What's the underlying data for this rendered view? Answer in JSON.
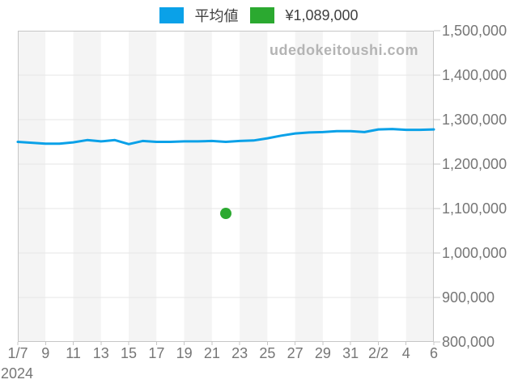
{
  "legend": {
    "items": [
      {
        "label": "平均値",
        "color": "#0aa1e8"
      },
      {
        "label": "¥1,089,000",
        "color": "#2ba930"
      }
    ]
  },
  "watermark": "udedokeitoushi.com",
  "axes": {
    "year_label": "2024"
  },
  "colors": {
    "line_blue": "#0aa1e8",
    "point_green": "#2ba930",
    "plot_band": "#f4f4f4",
    "plot_background": "#ffffff",
    "gridline": "#e6e6e6",
    "plot_border": "#c6c6c6",
    "tick_mark": "#c6c6c6",
    "tick_text": "#767676",
    "legend_text": "#3f3f3f",
    "watermark_text": "#b4b4b4"
  },
  "chart_data": {
    "type": "line",
    "title": "",
    "xlabel": "",
    "ylabel": "",
    "x_tick_labels": [
      "1/7",
      "9",
      "11",
      "13",
      "15",
      "17",
      "19",
      "21",
      "23",
      "25",
      "27",
      "29",
      "31",
      "2/2",
      "4",
      "6"
    ],
    "x_year_label": "2024",
    "y_tick_labels": [
      "1,500,000",
      "1,400,000",
      "1,300,000",
      "1,200,000",
      "1,100,000",
      "1,000,000",
      "900,000",
      "800,000"
    ],
    "ylim": [
      800000,
      1500000
    ],
    "y_step": 100000,
    "grid": true,
    "alternating_bands": true,
    "legend_position": "top-center",
    "series": [
      {
        "name": "平均値",
        "type": "line",
        "color": "#0aa1e8",
        "x_start_day": "1/7",
        "x_end_day": "2/6",
        "values": [
          1250000,
          1248000,
          1246000,
          1246000,
          1249000,
          1254000,
          1251000,
          1254000,
          1245000,
          1252000,
          1250000,
          1250000,
          1251000,
          1251000,
          1252000,
          1250000,
          1252000,
          1253000,
          1258000,
          1264000,
          1269000,
          1271000,
          1272000,
          1274000,
          1274000,
          1272000,
          1278000,
          1279000,
          1277000,
          1277000,
          1278000
        ]
      },
      {
        "name": "¥1,089,000",
        "type": "point",
        "color": "#2ba930",
        "x_index": 15,
        "x_day": "1/22",
        "value": 1089000
      }
    ]
  }
}
